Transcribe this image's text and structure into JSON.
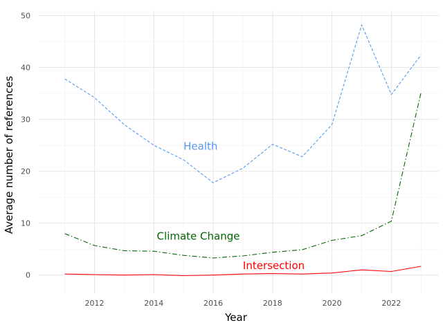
{
  "chart_data": {
    "type": "line",
    "title": "",
    "xlabel": "Year",
    "ylabel": "Average number of references",
    "x": [
      2011,
      2012,
      2013,
      2014,
      2015,
      2016,
      2017,
      2018,
      2019,
      2020,
      2021,
      2022,
      2023
    ],
    "xlim": [
      2010.1,
      2023.6
    ],
    "ylim": [
      -3.5,
      51
    ],
    "x_ticks": [
      2012,
      2014,
      2016,
      2018,
      2020,
      2022
    ],
    "y_ticks": [
      0,
      10,
      20,
      30,
      40,
      50
    ],
    "grid": true,
    "legend": "none",
    "series": [
      {
        "name": "Health",
        "color": "#5599ee",
        "dash": "dashed",
        "values": [
          37.8,
          34.2,
          29.0,
          25.0,
          22.2,
          17.8,
          20.6,
          25.2,
          22.8,
          29.0,
          48.2,
          34.8,
          42.4
        ],
        "label_pos": [
          2015.0,
          24.8
        ]
      },
      {
        "name": "Climate Change",
        "color": "#006400",
        "dash": "dashdot",
        "values": [
          8.0,
          5.7,
          4.7,
          4.6,
          3.8,
          3.3,
          3.7,
          4.4,
          4.9,
          6.7,
          7.6,
          10.4,
          35.2
        ],
        "label_pos": [
          2014.1,
          7.5
        ]
      },
      {
        "name": "Intersection",
        "color": "#ff0000",
        "dash": "solid",
        "values": [
          0.2,
          0.1,
          0.0,
          0.1,
          -0.1,
          0.0,
          0.2,
          0.3,
          0.2,
          0.4,
          1.0,
          0.7,
          1.7
        ],
        "label_pos": [
          2017.0,
          1.8
        ]
      }
    ]
  }
}
